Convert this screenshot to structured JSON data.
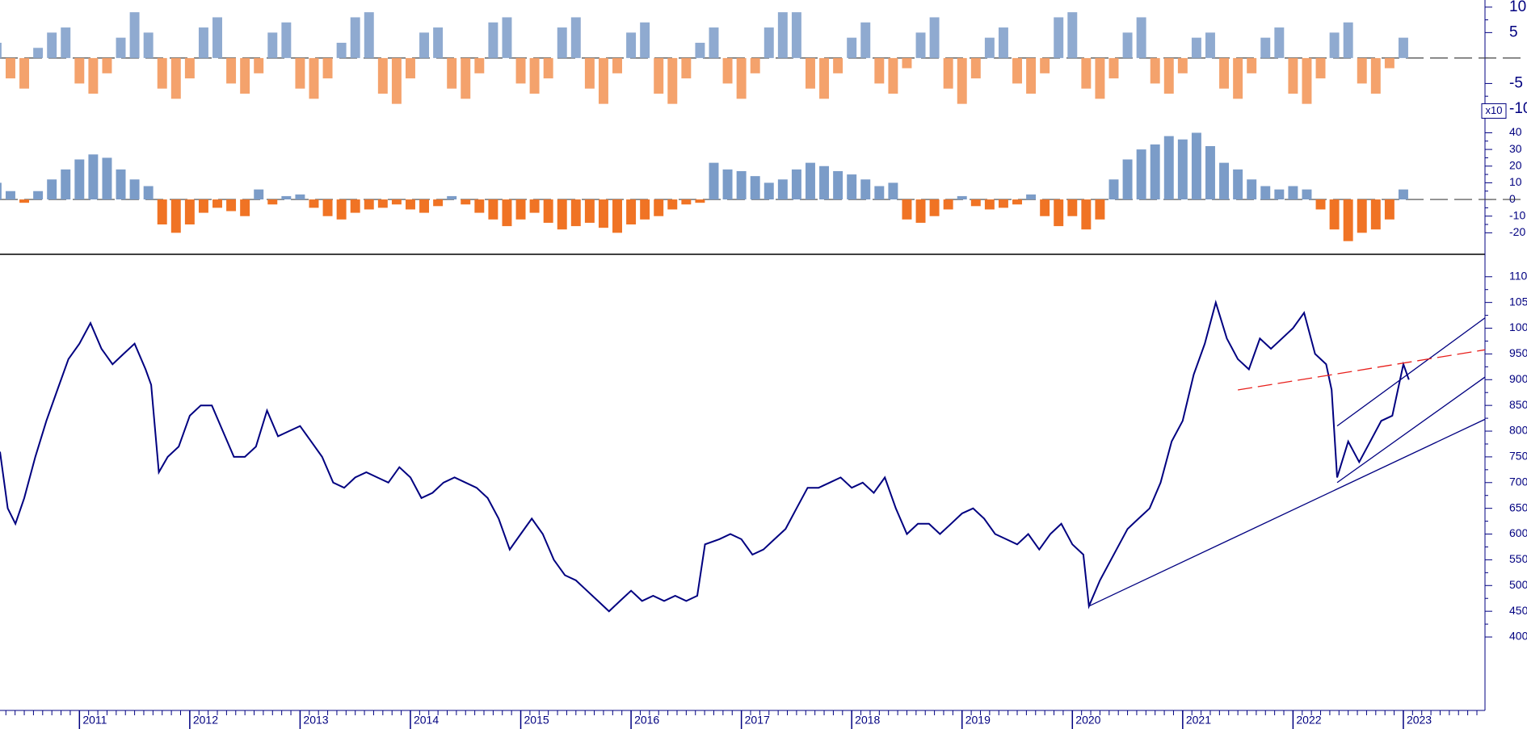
{
  "chart_data": [
    {
      "type": "bar",
      "pos_color": "#8faad0",
      "neg_color": "#f4a26c",
      "x": [
        2010.25,
        2010.375,
        2010.5,
        2010.625,
        2010.75,
        2010.875,
        2011.0,
        2011.125,
        2011.25,
        2011.375,
        2011.5,
        2011.625,
        2011.75,
        2011.875,
        2012.0,
        2012.125,
        2012.25,
        2012.375,
        2012.5,
        2012.625,
        2012.75,
        2012.875,
        2013.0,
        2013.125,
        2013.25,
        2013.375,
        2013.5,
        2013.625,
        2013.75,
        2013.875,
        2014.0,
        2014.125,
        2014.25,
        2014.375,
        2014.5,
        2014.625,
        2014.75,
        2014.875,
        2015.0,
        2015.125,
        2015.25,
        2015.375,
        2015.5,
        2015.625,
        2015.75,
        2015.875,
        2016.0,
        2016.125,
        2016.25,
        2016.375,
        2016.5,
        2016.625,
        2016.75,
        2016.875,
        2017.0,
        2017.125,
        2017.25,
        2017.375,
        2017.5,
        2017.625,
        2017.75,
        2017.875,
        2018.0,
        2018.125,
        2018.25,
        2018.375,
        2018.5,
        2018.625,
        2018.75,
        2018.875,
        2019.0,
        2019.125,
        2019.25,
        2019.375,
        2019.5,
        2019.625,
        2019.75,
        2019.875,
        2020.0,
        2020.125,
        2020.25,
        2020.375,
        2020.5,
        2020.625,
        2020.75,
        2020.875,
        2021.0,
        2021.125,
        2021.25,
        2021.375,
        2021.5,
        2021.625,
        2021.75,
        2021.875,
        2022.0,
        2022.125,
        2022.25,
        2022.375,
        2022.5,
        2022.625,
        2022.75,
        2022.875,
        2023.0
      ],
      "values": [
        3,
        -4,
        -6,
        2,
        5,
        6,
        -5,
        -7,
        -3,
        4,
        9,
        5,
        -6,
        -8,
        -4,
        6,
        8,
        -5,
        -7,
        -3,
        5,
        7,
        -6,
        -8,
        -4,
        3,
        8,
        9,
        -7,
        -9,
        -4,
        5,
        6,
        -6,
        -8,
        -3,
        7,
        8,
        -5,
        -7,
        -4,
        6,
        8,
        -6,
        -9,
        -3,
        5,
        7,
        -7,
        -9,
        -4,
        3,
        6,
        -5,
        -8,
        -3,
        6,
        9,
        9,
        -6,
        -8,
        -3,
        4,
        7,
        -5,
        -7,
        -2,
        5,
        8,
        -6,
        -9,
        -4,
        4,
        6,
        -5,
        -7,
        -3,
        8,
        9,
        -6,
        -8,
        -4,
        5,
        8,
        -5,
        -7,
        -3,
        4,
        5,
        -6,
        -8,
        -3,
        4,
        6,
        -7,
        -9,
        -4,
        5,
        7,
        -5,
        -7,
        -2,
        4
      ],
      "xlim": [
        2010.28,
        2023.74
      ],
      "ylim": [
        -10.8,
        11.4
      ],
      "yticks": [
        10,
        5,
        -5,
        -10
      ]
    },
    {
      "type": "bar",
      "pos_color": "#7b9cc8",
      "neg_color": "#f07324",
      "annotation": "x10",
      "x": [
        2010.25,
        2010.375,
        2010.5,
        2010.625,
        2010.75,
        2010.875,
        2011.0,
        2011.125,
        2011.25,
        2011.375,
        2011.5,
        2011.625,
        2011.75,
        2011.875,
        2012.0,
        2012.125,
        2012.25,
        2012.375,
        2012.5,
        2012.625,
        2012.75,
        2012.875,
        2013.0,
        2013.125,
        2013.25,
        2013.375,
        2013.5,
        2013.625,
        2013.75,
        2013.875,
        2014.0,
        2014.125,
        2014.25,
        2014.375,
        2014.5,
        2014.625,
        2014.75,
        2014.875,
        2015.0,
        2015.125,
        2015.25,
        2015.375,
        2015.5,
        2015.625,
        2015.75,
        2015.875,
        2016.0,
        2016.125,
        2016.25,
        2016.375,
        2016.5,
        2016.625,
        2016.75,
        2016.875,
        2017.0,
        2017.125,
        2017.25,
        2017.375,
        2017.5,
        2017.625,
        2017.75,
        2017.875,
        2018.0,
        2018.125,
        2018.25,
        2018.375,
        2018.5,
        2018.625,
        2018.75,
        2018.875,
        2019.0,
        2019.125,
        2019.25,
        2019.375,
        2019.5,
        2019.625,
        2019.75,
        2019.875,
        2020.0,
        2020.125,
        2020.25,
        2020.375,
        2020.5,
        2020.625,
        2020.75,
        2020.875,
        2021.0,
        2021.125,
        2021.25,
        2021.375,
        2021.5,
        2021.625,
        2021.75,
        2021.875,
        2022.0,
        2022.125,
        2022.25,
        2022.375,
        2022.5,
        2022.625,
        2022.75,
        2022.875,
        2023.0
      ],
      "values": [
        10,
        5,
        -2,
        5,
        12,
        18,
        24,
        27,
        25,
        18,
        12,
        8,
        -15,
        -20,
        -15,
        -8,
        -5,
        -7,
        -10,
        6,
        -3,
        2,
        3,
        -5,
        -10,
        -12,
        -8,
        -6,
        -5,
        -3,
        -6,
        -8,
        -4,
        2,
        -3,
        -8,
        -12,
        -16,
        -12,
        -8,
        -14,
        -18,
        -16,
        -14,
        -17,
        -20,
        -15,
        -12,
        -10,
        -6,
        -3,
        -2,
        22,
        18,
        17,
        14,
        10,
        12,
        18,
        22,
        20,
        17,
        15,
        12,
        8,
        10,
        -12,
        -14,
        -10,
        -6,
        2,
        -4,
        -6,
        -5,
        -3,
        3,
        -10,
        -16,
        -10,
        -18,
        -12,
        12,
        24,
        30,
        33,
        38,
        36,
        40,
        32,
        22,
        18,
        12,
        8,
        6,
        8,
        6,
        -6,
        -18,
        -25,
        -20,
        -18,
        -12,
        6
      ],
      "xlim": [
        2010.28,
        2023.74
      ],
      "ylim": [
        -30,
        47
      ],
      "yticks": [
        40,
        30,
        20,
        10,
        0,
        -10,
        -20
      ]
    },
    {
      "type": "line",
      "color": "#000080",
      "x": [
        2010.28,
        2010.35,
        2010.42,
        2010.5,
        2010.6,
        2010.7,
        2010.8,
        2010.9,
        2011.0,
        2011.1,
        2011.2,
        2011.3,
        2011.4,
        2011.5,
        2011.6,
        2011.65,
        2011.72,
        2011.8,
        2011.9,
        2012.0,
        2012.1,
        2012.2,
        2012.3,
        2012.4,
        2012.5,
        2012.6,
        2012.7,
        2012.8,
        2012.9,
        2013.0,
        2013.1,
        2013.2,
        2013.3,
        2013.4,
        2013.5,
        2013.6,
        2013.7,
        2013.8,
        2013.9,
        2014.0,
        2014.1,
        2014.2,
        2014.3,
        2014.4,
        2014.5,
        2014.6,
        2014.7,
        2014.8,
        2014.9,
        2015.0,
        2015.1,
        2015.2,
        2015.3,
        2015.4,
        2015.5,
        2015.6,
        2015.7,
        2015.8,
        2015.9,
        2016.0,
        2016.1,
        2016.2,
        2016.3,
        2016.4,
        2016.5,
        2016.6,
        2016.67,
        2016.8,
        2016.9,
        2017.0,
        2017.1,
        2017.2,
        2017.3,
        2017.4,
        2017.5,
        2017.6,
        2017.7,
        2017.8,
        2017.9,
        2018.0,
        2018.1,
        2018.2,
        2018.3,
        2018.4,
        2018.5,
        2018.6,
        2018.7,
        2018.8,
        2018.9,
        2019.0,
        2019.1,
        2019.2,
        2019.3,
        2019.4,
        2019.5,
        2019.6,
        2019.7,
        2019.8,
        2019.9,
        2020.0,
        2020.1,
        2020.15,
        2020.25,
        2020.4,
        2020.5,
        2020.6,
        2020.7,
        2020.8,
        2020.9,
        2021.0,
        2021.1,
        2021.2,
        2021.3,
        2021.4,
        2021.5,
        2021.6,
        2021.7,
        2021.8,
        2021.9,
        2022.0,
        2022.1,
        2022.2,
        2022.3,
        2022.35,
        2022.4,
        2022.5,
        2022.6,
        2022.7,
        2022.8,
        2022.9,
        2023.0,
        2023.05
      ],
      "values": [
        7600,
        6500,
        6200,
        6700,
        7500,
        8200,
        8800,
        9400,
        9700,
        10100,
        9600,
        9300,
        9500,
        9700,
        9200,
        8900,
        7200,
        7500,
        7700,
        8300,
        8500,
        8500,
        8000,
        7500,
        7500,
        7700,
        8400,
        7900,
        8000,
        8100,
        7800,
        7500,
        7000,
        6900,
        7100,
        7200,
        7100,
        7000,
        7300,
        7100,
        6700,
        6800,
        7000,
        7100,
        7000,
        6900,
        6700,
        6300,
        5700,
        6000,
        6300,
        6000,
        5500,
        5200,
        5100,
        4900,
        4700,
        4500,
        4700,
        4900,
        4700,
        4800,
        4700,
        4800,
        4700,
        4800,
        5800,
        5900,
        6000,
        5900,
        5600,
        5700,
        5900,
        6100,
        6500,
        6900,
        6900,
        7000,
        7100,
        6900,
        7000,
        6800,
        7100,
        6500,
        6000,
        6200,
        6200,
        6000,
        6200,
        6400,
        6500,
        6300,
        6000,
        5900,
        5800,
        6000,
        5700,
        6000,
        6200,
        5800,
        5600,
        4600,
        5100,
        5700,
        6100,
        6300,
        6500,
        7000,
        7800,
        8200,
        9100,
        9700,
        10500,
        9800,
        9400,
        9200,
        9800,
        9600,
        9800,
        10000,
        10300,
        9500,
        9300,
        8800,
        7100,
        7800,
        7400,
        7800,
        8200,
        8300,
        9300,
        9000
      ],
      "trendlines": [
        {
          "color": "#000080",
          "dashed": false,
          "x": [
            2020.15,
            2023.74
          ],
          "y": [
            4600,
            8230
          ]
        },
        {
          "color": "#000080",
          "dashed": false,
          "x": [
            2022.4,
            2023.74
          ],
          "y": [
            7000,
            9050
          ]
        },
        {
          "color": "#000080",
          "dashed": false,
          "x": [
            2022.4,
            2023.74
          ],
          "y": [
            8100,
            10200
          ]
        },
        {
          "color": "#e8201c",
          "dashed": true,
          "x": [
            2021.5,
            2023.74
          ],
          "y": [
            8800,
            9580
          ]
        }
      ],
      "xlim": [
        2010.28,
        2023.74
      ],
      "ylim": [
        2730,
        11420
      ],
      "xticks": [
        2011,
        2012,
        2013,
        2014,
        2015,
        2016,
        2017,
        2018,
        2019,
        2020,
        2021,
        2022,
        2023
      ],
      "yticks": [
        4000,
        4500,
        5000,
        5500,
        6000,
        6500,
        7000,
        7500,
        8000,
        8500,
        9000,
        9500,
        10000,
        10500,
        11000
      ]
    }
  ]
}
